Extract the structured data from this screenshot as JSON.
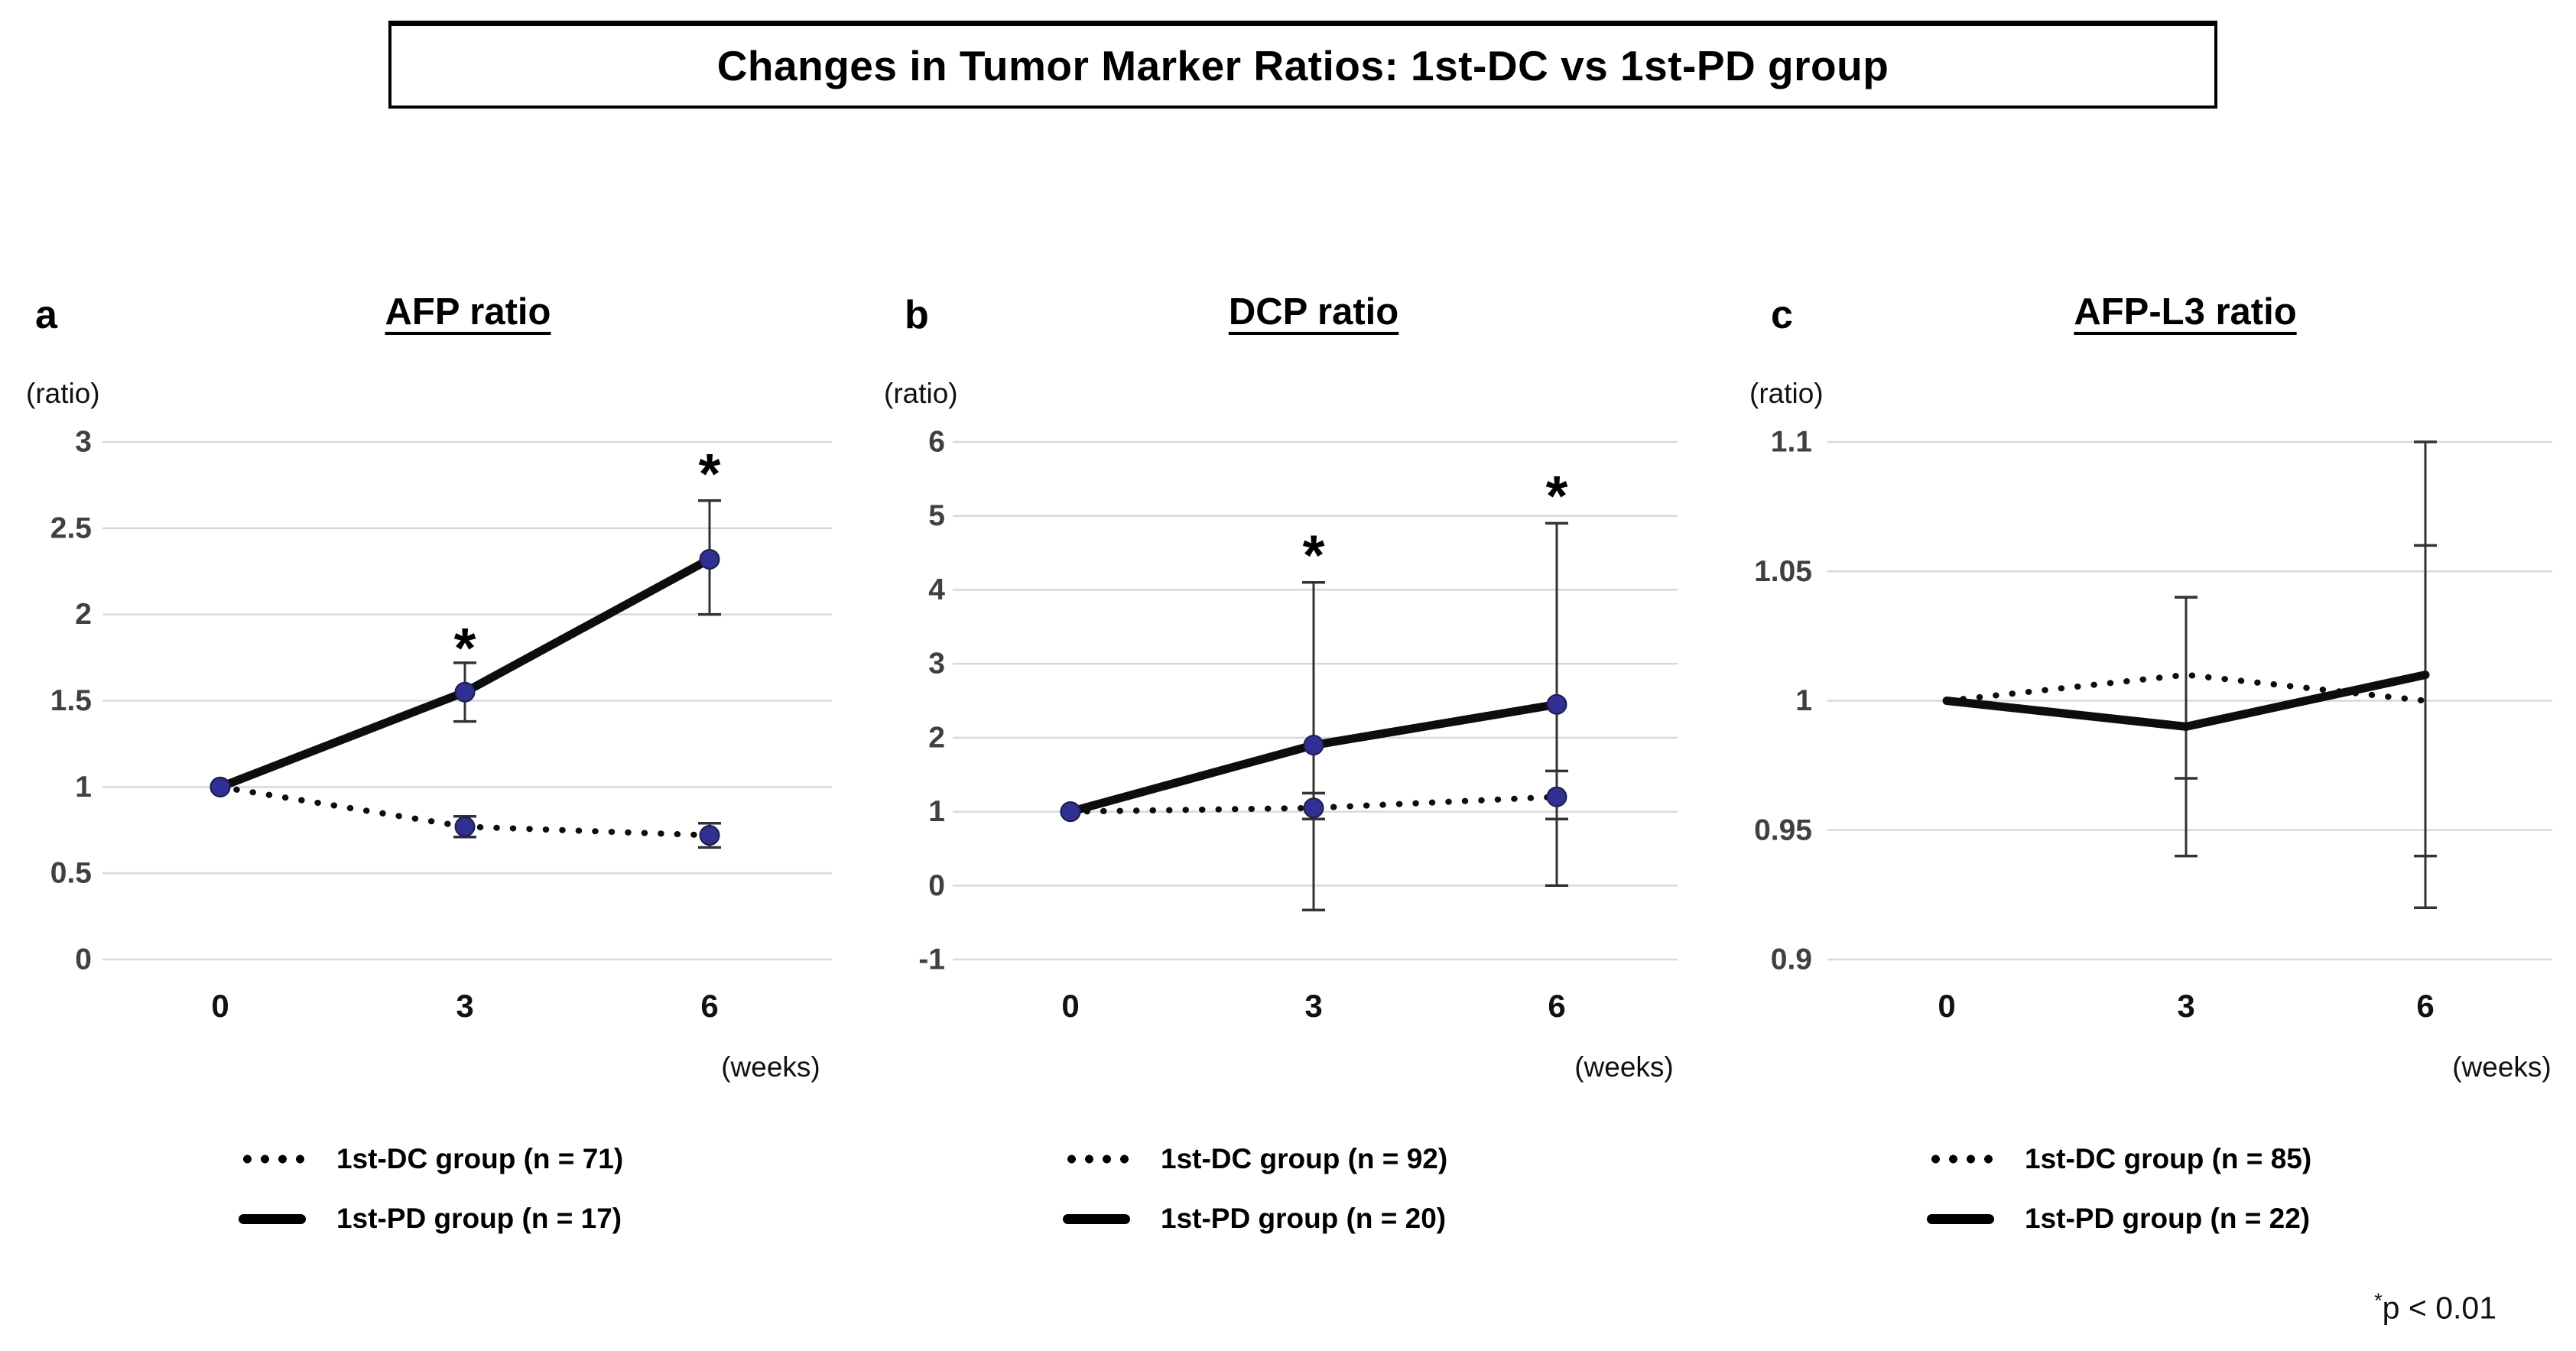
{
  "title": "Changes in Tumor Marker Ratios: 1st-DC vs 1st-PD group",
  "footnote_star": "*",
  "footnote_text": "p < 0.01",
  "colors": {
    "marker_fill": "#2E3192",
    "marker_edge": "#1c1f4a",
    "line": "#0d0d0d",
    "grid": "#D9D9D9",
    "y_tick_text": "#404040",
    "x_tick_text": "#111111",
    "error_bar": "#333333"
  },
  "chart_data": [
    {
      "type": "line",
      "panel_letter": "a",
      "title": "AFP ratio",
      "y_axis_label": "(ratio)",
      "x_axis_label": "(weeks)",
      "x": [
        0,
        3,
        6
      ],
      "x_tick_labels": [
        "0",
        "3",
        "6"
      ],
      "ylim": [
        0,
        3
      ],
      "y_ticks": [
        "3",
        "2.5",
        "2",
        "1.5",
        "1",
        "0.5",
        "0"
      ],
      "grid": true,
      "legend_position": "bottom",
      "series": [
        {
          "name": "1st-DC group (n = 71)",
          "style": "dotted",
          "markers": true,
          "values": [
            1.0,
            0.77,
            0.72
          ],
          "error_low": [
            null,
            0.71,
            0.65
          ],
          "error_high": [
            null,
            0.83,
            0.79
          ]
        },
        {
          "name": "1st-PD group (n = 17)",
          "style": "solid",
          "markers": true,
          "values": [
            1.0,
            1.55,
            2.32
          ],
          "error_low": [
            null,
            1.38,
            2.0
          ],
          "error_high": [
            null,
            1.72,
            2.66
          ]
        }
      ],
      "annotations": [
        {
          "text": "*",
          "x": 3,
          "y": 1.87
        },
        {
          "text": "*",
          "x": 6,
          "y": 2.88
        }
      ]
    },
    {
      "type": "line",
      "panel_letter": "b",
      "title": "DCP ratio",
      "y_axis_label": "(ratio)",
      "x_axis_label": "(weeks)",
      "x": [
        0,
        3,
        6
      ],
      "x_tick_labels": [
        "0",
        "3",
        "6"
      ],
      "ylim": [
        -1,
        6
      ],
      "y_ticks": [
        "6",
        "5",
        "4",
        "3",
        "2",
        "1",
        "0",
        "-1"
      ],
      "grid": true,
      "legend_position": "bottom",
      "series": [
        {
          "name": "1st-DC group (n = 92)",
          "style": "dotted",
          "markers": true,
          "values": [
            1.0,
            1.05,
            1.2
          ],
          "error_low": [
            null,
            0.9,
            0.9
          ],
          "error_high": [
            null,
            1.25,
            1.55
          ]
        },
        {
          "name": "1st-PD group (n = 20)",
          "style": "solid",
          "markers": true,
          "values": [
            1.0,
            1.9,
            2.45
          ],
          "error_low": [
            null,
            -0.33,
            0.0
          ],
          "error_high": [
            null,
            4.1,
            4.9
          ]
        }
      ],
      "annotations": [
        {
          "text": "*",
          "x": 3,
          "y": 4.62
        },
        {
          "text": "*",
          "x": 6,
          "y": 5.42
        }
      ]
    },
    {
      "type": "line",
      "panel_letter": "c",
      "title": "AFP-L3 ratio",
      "y_axis_label": "(ratio)",
      "x_axis_label": "(weeks)",
      "x": [
        0,
        3,
        6
      ],
      "x_tick_labels": [
        "0",
        "3",
        "6"
      ],
      "ylim": [
        0.9,
        1.1
      ],
      "y_ticks": [
        "1.1",
        "1.05",
        "1",
        "0.95",
        "0.9"
      ],
      "grid": true,
      "legend_position": "bottom",
      "series": [
        {
          "name": "1st-DC group (n = 85)",
          "style": "dotted",
          "markers": false,
          "values": [
            1.0,
            1.01,
            1.0
          ],
          "error_low": [
            null,
            0.97,
            0.94
          ],
          "error_high": [
            null,
            1.04,
            1.06
          ]
        },
        {
          "name": "1st-PD group (n = 22)",
          "style": "solid",
          "markers": false,
          "values": [
            1.0,
            0.99,
            1.01
          ],
          "error_low": [
            null,
            0.94,
            0.92
          ],
          "error_high": [
            null,
            1.04,
            1.1
          ]
        }
      ],
      "annotations": []
    }
  ]
}
